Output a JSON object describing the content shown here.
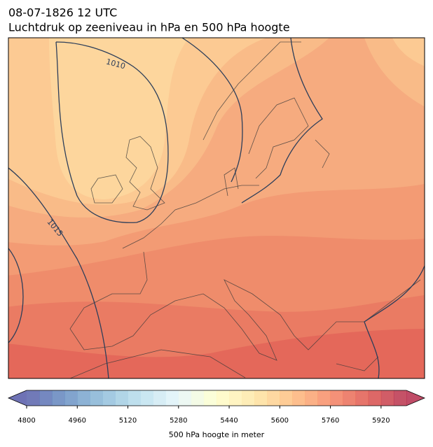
{
  "header": {
    "title": "08-07-1826 12 UTC",
    "subtitle": "Luchtdruk op zeeniveau in hPa en 500 hPa hoogte"
  },
  "map": {
    "isobar_labels": [
      "1010",
      "1015"
    ]
  },
  "colorbar": {
    "lim": [
      4800,
      6000
    ],
    "step": 40,
    "ticks": [
      4800,
      4960,
      5120,
      5280,
      5440,
      5600,
      5760,
      5920
    ],
    "label": "500 hPa hoogte in meter",
    "colormap": [
      "#313695",
      "#4575b4",
      "#74add1",
      "#abd9e9",
      "#e0f3f8",
      "#ffffbf",
      "#fee090",
      "#fdae61",
      "#f46d43",
      "#d73027",
      "#a50026"
    ],
    "opacity": 0.7
  }
}
